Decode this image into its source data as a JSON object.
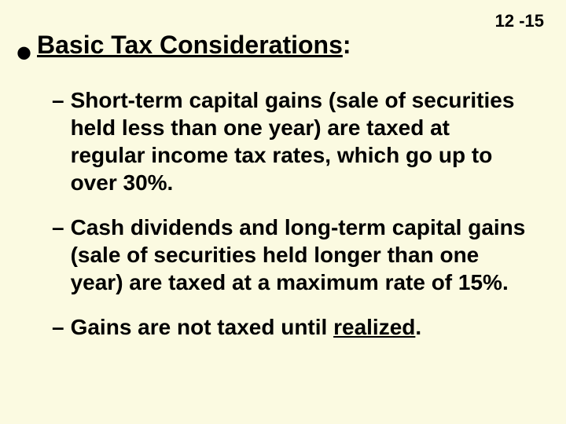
{
  "page_number": "12 -15",
  "heading": "Basic Tax Considerations",
  "heading_suffix": ":",
  "items": [
    {
      "pre": "Short-term capital gains (sale of securities held less than one year) are taxed at regular income tax rates, which go up to over 30%.",
      "underlined": "",
      "post": ""
    },
    {
      "pre": "Cash dividends and long-term capital gains (sale of securities held longer than one year) are taxed at a maximum rate of 15%.",
      "underlined": "",
      "post": ""
    },
    {
      "pre": "Gains are not taxed until ",
      "underlined": "realized",
      "post": "."
    }
  ],
  "colors": {
    "background": "#fbfae1",
    "text": "#000000"
  },
  "typography": {
    "heading_fontsize": 32,
    "body_fontsize": 28,
    "font_weight": "bold",
    "font_family": "Arial"
  }
}
